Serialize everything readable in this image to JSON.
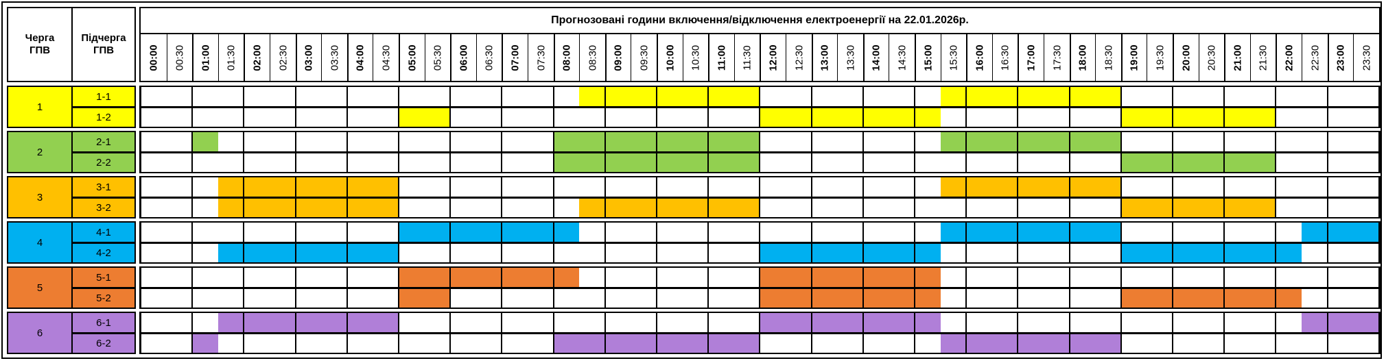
{
  "header": {
    "title": "Прогнозовані години включення/відключення електроенергії на 22.01.2026р.",
    "col_queue": "Черга ГПВ",
    "col_subqueue": "Підчерга ГПВ",
    "time_slots": [
      "00:00",
      "00:30",
      "01:00",
      "01:30",
      "02:00",
      "02:30",
      "03:00",
      "03:30",
      "04:00",
      "04:30",
      "05:00",
      "05:30",
      "06:00",
      "06:30",
      "07:00",
      "07:30",
      "08:00",
      "08:30",
      "09:00",
      "09:30",
      "10:00",
      "10:30",
      "11:00",
      "11:30",
      "12:00",
      "12:30",
      "13:00",
      "13:30",
      "14:00",
      "14:30",
      "15:00",
      "15:30",
      "16:00",
      "16:30",
      "17:00",
      "17:30",
      "18:00",
      "18:30",
      "19:00",
      "19:30",
      "20:00",
      "20:30",
      "21:00",
      "21:30",
      "22:00",
      "22:30",
      "23:00",
      "23:30"
    ]
  },
  "groups": [
    {
      "queue": "1",
      "color": "#FFFF00",
      "subqueues": [
        {
          "label": "1-1",
          "outages": [
            [
              "08:30",
              "12:00"
            ],
            [
              "15:30",
              "19:00"
            ]
          ]
        },
        {
          "label": "1-2",
          "outages": [
            [
              "05:00",
              "06:00"
            ],
            [
              "12:00",
              "15:30"
            ],
            [
              "19:00",
              "22:00"
            ]
          ]
        }
      ]
    },
    {
      "queue": "2",
      "color": "#92D050",
      "subqueues": [
        {
          "label": "2-1",
          "outages": [
            [
              "01:00",
              "01:30"
            ],
            [
              "08:00",
              "12:00"
            ],
            [
              "15:30",
              "19:00"
            ]
          ]
        },
        {
          "label": "2-2",
          "outages": [
            [
              "08:00",
              "12:00"
            ],
            [
              "19:00",
              "22:00"
            ]
          ]
        }
      ]
    },
    {
      "queue": "3",
      "color": "#FFC000",
      "subqueues": [
        {
          "label": "3-1",
          "outages": [
            [
              "01:30",
              "05:00"
            ],
            [
              "15:30",
              "19:00"
            ]
          ]
        },
        {
          "label": "3-2",
          "outages": [
            [
              "01:30",
              "05:00"
            ],
            [
              "08:30",
              "12:00"
            ],
            [
              "19:00",
              "22:00"
            ]
          ]
        }
      ]
    },
    {
      "queue": "4",
      "color": "#00B0F0",
      "subqueues": [
        {
          "label": "4-1",
          "outages": [
            [
              "05:00",
              "08:30"
            ],
            [
              "15:30",
              "19:00"
            ],
            [
              "22:30",
              "24:00"
            ]
          ]
        },
        {
          "label": "4-2",
          "outages": [
            [
              "01:30",
              "05:00"
            ],
            [
              "12:00",
              "15:30"
            ],
            [
              "19:00",
              "22:30"
            ]
          ]
        }
      ]
    },
    {
      "queue": "5",
      "color": "#ED7D31",
      "subqueues": [
        {
          "label": "5-1",
          "outages": [
            [
              "05:00",
              "08:30"
            ],
            [
              "12:00",
              "15:30"
            ]
          ]
        },
        {
          "label": "5-2",
          "outages": [
            [
              "05:00",
              "06:00"
            ],
            [
              "12:00",
              "15:30"
            ],
            [
              "19:00",
              "22:30"
            ]
          ]
        }
      ]
    },
    {
      "queue": "6",
      "color": "#B07FD8",
      "subqueues": [
        {
          "label": "6-1",
          "outages": [
            [
              "01:30",
              "05:00"
            ],
            [
              "12:00",
              "15:30"
            ],
            [
              "22:30",
              "24:00"
            ]
          ]
        },
        {
          "label": "6-2",
          "outages": [
            [
              "01:00",
              "01:30"
            ],
            [
              "08:00",
              "12:00"
            ],
            [
              "15:30",
              "19:00"
            ]
          ]
        }
      ]
    }
  ]
}
